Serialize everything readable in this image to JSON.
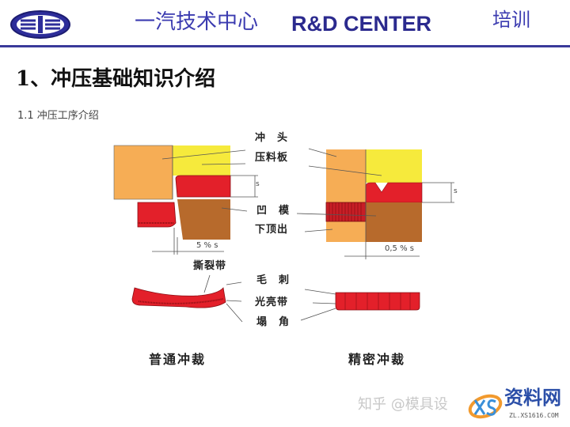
{
  "header": {
    "title_cn": "一汽技术中心",
    "title_en": "R&D CENTER",
    "tag": "培训",
    "logo_icon": "faw-logo-icon",
    "accent": "#3a3a9a"
  },
  "heading": "1、冲压基础知识介绍",
  "subheading": "1.1 冲压工序介绍",
  "diagram": {
    "labels": {
      "punch": "冲　头",
      "holder": "压料板",
      "die": "凹　模",
      "ejector": "下顶出",
      "tear_zone": "撕裂带",
      "burr": "毛　刺",
      "shiny_zone": "光亮带",
      "rollover": "塌　角"
    },
    "dim_s": "s",
    "clearance_conventional": "5 % s",
    "clearance_fine": "0,5 % s",
    "caption_conventional": "普通冲裁",
    "caption_fine": "精密冲裁",
    "colors": {
      "punch": "#f6ad55",
      "holder": "#f6ea3c",
      "sheet": "#e3202a",
      "die": "#b76a2c"
    }
  },
  "watermark": {
    "text": "知乎 @模具设",
    "brand": "资料网",
    "url": "ZL.XS1616.COM"
  }
}
